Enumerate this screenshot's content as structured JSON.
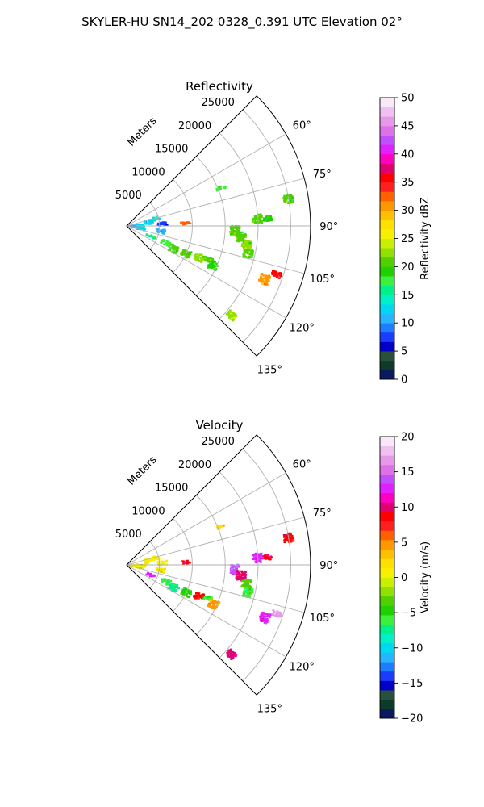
{
  "figure_title": "SKYLER-HU  SN14_202  0328_0.391 UTC Elevation 02°",
  "chart_data": [
    {
      "type": "polar-sector",
      "title": "Reflectivity",
      "radial_label": "Meters",
      "radial_ticks": [
        "5000",
        "10000",
        "15000",
        "20000",
        "25000"
      ],
      "radial_tick_values": [
        5000,
        10000,
        15000,
        20000,
        25000
      ],
      "rlim": [
        0,
        28000
      ],
      "angle_range_deg": [
        45,
        135
      ],
      "angle_ticks": [
        "60°",
        "75°",
        "90°",
        "105°",
        "120°",
        "135°"
      ],
      "angle_tick_values": [
        60,
        75,
        90,
        105,
        120,
        135
      ],
      "grid": true,
      "colorbar": {
        "label": "Reflectivity dBZ",
        "range": [
          0,
          50
        ],
        "ticks": [
          "0",
          "5",
          "10",
          "15",
          "20",
          "25",
          "30",
          "35",
          "40",
          "45",
          "50"
        ],
        "colors": [
          "#0a1a5e",
          "#0c3b2a",
          "#2a4f3c",
          "#0000c8",
          "#1a3cff",
          "#1e7dff",
          "#28b4ff",
          "#00d8f0",
          "#00f0c8",
          "#00f08c",
          "#3cf03c",
          "#20d000",
          "#50d000",
          "#90e000",
          "#c8f000",
          "#f8f000",
          "#ffe000",
          "#ffc000",
          "#ff9800",
          "#ff6000",
          "#ff2020",
          "#ff0000",
          "#e00070",
          "#ff00c0",
          "#e020ff",
          "#c050ff",
          "#e070e8",
          "#e898e8",
          "#f0c0f0",
          "#f8e8f8"
        ]
      },
      "echoes": [
        {
          "range_m": 1200,
          "az_from": 84,
          "az_to": 106,
          "value": 9
        },
        {
          "range_m": 2200,
          "az_from": 86,
          "az_to": 104,
          "value": 12
        },
        {
          "range_m": 3400,
          "az_from": 74,
          "az_to": 86,
          "value": 12
        },
        {
          "range_m": 4500,
          "az_from": 73,
          "az_to": 80,
          "value": 13
        },
        {
          "range_m": 5500,
          "az_from": 84,
          "az_to": 90,
          "value": 8
        },
        {
          "range_m": 5200,
          "az_from": 95,
          "az_to": 102,
          "value": 11
        },
        {
          "range_m": 4000,
          "az_from": 110,
          "az_to": 116,
          "value": 15
        },
        {
          "range_m": 6500,
          "az_from": 110,
          "az_to": 116,
          "value": 18
        },
        {
          "range_m": 8000,
          "az_from": 112,
          "az_to": 120,
          "value": 20
        },
        {
          "range_m": 10000,
          "az_from": 112,
          "az_to": 118,
          "value": 21
        },
        {
          "range_m": 12000,
          "az_from": 111,
          "az_to": 116,
          "value": 22
        },
        {
          "range_m": 13500,
          "az_from": 111,
          "az_to": 114,
          "value": 21
        },
        {
          "range_m": 14500,
          "az_from": 112,
          "az_to": 117,
          "value": 19
        },
        {
          "range_m": 9000,
          "az_from": 86,
          "az_to": 89,
          "value": 33
        },
        {
          "range_m": 16500,
          "az_from": 90,
          "az_to": 95,
          "value": 20
        },
        {
          "range_m": 17500,
          "az_from": 93,
          "az_to": 98,
          "value": 21
        },
        {
          "range_m": 18500,
          "az_from": 97,
          "az_to": 101,
          "value": 22
        },
        {
          "range_m": 19000,
          "az_from": 101,
          "az_to": 105,
          "value": 21
        },
        {
          "range_m": 20000,
          "az_from": 85,
          "az_to": 89,
          "value": 20
        },
        {
          "range_m": 21500,
          "az_from": 86,
          "az_to": 88,
          "value": 19
        },
        {
          "range_m": 22500,
          "az_from": 109,
          "az_to": 113,
          "value": 30
        },
        {
          "range_m": 24000,
          "az_from": 107,
          "az_to": 109,
          "value": 36
        },
        {
          "range_m": 25000,
          "az_from": 79,
          "az_to": 82,
          "value": 20
        },
        {
          "range_m": 21000,
          "az_from": 129,
          "az_to": 132,
          "value": 23
        },
        {
          "range_m": 15500,
          "az_from": 67,
          "az_to": 69,
          "value": 18
        }
      ]
    },
    {
      "type": "polar-sector",
      "title": "Velocity",
      "radial_label": "Meters",
      "radial_ticks": [
        "5000",
        "10000",
        "15000",
        "20000",
        "25000"
      ],
      "radial_tick_values": [
        5000,
        10000,
        15000,
        20000,
        25000
      ],
      "rlim": [
        0,
        28000
      ],
      "angle_range_deg": [
        45,
        135
      ],
      "angle_ticks": [
        "60°",
        "75°",
        "90°",
        "105°",
        "120°",
        "135°"
      ],
      "angle_tick_values": [
        60,
        75,
        90,
        105,
        120,
        135
      ],
      "grid": true,
      "colorbar": {
        "label": "Velocity (m/s)",
        "range": [
          -20,
          20
        ],
        "ticks": [
          "−20",
          "−15",
          "−10",
          "−5",
          "0",
          "5",
          "10",
          "15",
          "20"
        ],
        "colors": [
          "#0a1a5e",
          "#0c3b2a",
          "#2a4f3c",
          "#0000c8",
          "#1a3cff",
          "#1e7dff",
          "#28b4ff",
          "#00d8f0",
          "#00f0c8",
          "#00f08c",
          "#3cf03c",
          "#20d000",
          "#50d000",
          "#90e000",
          "#c8f000",
          "#f8f000",
          "#ffe000",
          "#ffc000",
          "#ff9800",
          "#ff6000",
          "#ff2020",
          "#ff0000",
          "#e00070",
          "#ff00c0",
          "#e020ff",
          "#c050ff",
          "#e070e8",
          "#e898e8",
          "#f0c0f0",
          "#f8e8f8"
        ]
      },
      "echoes": [
        {
          "range_m": 1200,
          "az_from": 84,
          "az_to": 106,
          "value": 1
        },
        {
          "range_m": 2200,
          "az_from": 86,
          "az_to": 104,
          "value": 0
        },
        {
          "range_m": 3400,
          "az_from": 74,
          "az_to": 86,
          "value": 1
        },
        {
          "range_m": 4500,
          "az_from": 73,
          "az_to": 80,
          "value": 0
        },
        {
          "range_m": 5500,
          "az_from": 84,
          "az_to": 90,
          "value": 0
        },
        {
          "range_m": 5200,
          "az_from": 95,
          "az_to": 102,
          "value": 2
        },
        {
          "range_m": 4000,
          "az_from": 110,
          "az_to": 116,
          "value": 12
        },
        {
          "range_m": 6500,
          "az_from": 110,
          "az_to": 116,
          "value": -6
        },
        {
          "range_m": 8000,
          "az_from": 112,
          "az_to": 120,
          "value": -7
        },
        {
          "range_m": 10000,
          "az_from": 112,
          "az_to": 118,
          "value": -5
        },
        {
          "range_m": 12000,
          "az_from": 111,
          "az_to": 116,
          "value": 8
        },
        {
          "range_m": 13500,
          "az_from": 111,
          "az_to": 114,
          "value": -6
        },
        {
          "range_m": 14500,
          "az_from": 112,
          "az_to": 117,
          "value": 4
        },
        {
          "range_m": 9000,
          "az_from": 86,
          "az_to": 89,
          "value": 9
        },
        {
          "range_m": 16500,
          "az_from": 90,
          "az_to": 95,
          "value": 14
        },
        {
          "range_m": 17500,
          "az_from": 93,
          "az_to": 98,
          "value": 10
        },
        {
          "range_m": 18500,
          "az_from": 97,
          "az_to": 101,
          "value": -4
        },
        {
          "range_m": 19000,
          "az_from": 101,
          "az_to": 105,
          "value": -6
        },
        {
          "range_m": 20000,
          "az_from": 85,
          "az_to": 89,
          "value": 12
        },
        {
          "range_m": 21500,
          "az_from": 86,
          "az_to": 88,
          "value": 9
        },
        {
          "range_m": 22500,
          "az_from": 109,
          "az_to": 113,
          "value": 13
        },
        {
          "range_m": 24000,
          "az_from": 107,
          "az_to": 109,
          "value": 16
        },
        {
          "range_m": 25000,
          "az_from": 79,
          "az_to": 82,
          "value": 8
        },
        {
          "range_m": 21000,
          "az_from": 129,
          "az_to": 132,
          "value": 10
        },
        {
          "range_m": 15500,
          "az_from": 67,
          "az_to": 69,
          "value": 2
        }
      ]
    }
  ]
}
